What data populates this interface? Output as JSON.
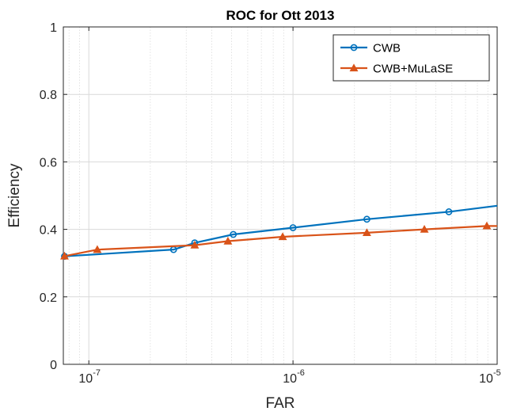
{
  "chart_data": {
    "type": "line",
    "title": "ROC for Ott 2013",
    "xlabel": "FAR",
    "ylabel": "Efficiency",
    "xscale": "log",
    "xlim": [
      7.5e-08,
      1e-05
    ],
    "ylim": [
      0,
      1
    ],
    "xticks": [
      1e-07,
      1e-06,
      1e-05
    ],
    "xtick_labels": [
      {
        "base": "10",
        "exp": "-7"
      },
      {
        "base": "10",
        "exp": "-6"
      },
      {
        "base": "10",
        "exp": "-5"
      }
    ],
    "yticks": [
      0,
      0.2,
      0.4,
      0.6,
      0.8,
      1
    ],
    "ytick_labels": [
      "0",
      "0.2",
      "0.4",
      "0.6",
      "0.8",
      "1"
    ],
    "grid": true,
    "legend_position": "top-right",
    "series": [
      {
        "name": "CWB",
        "color": "#0072BD",
        "marker": "circle",
        "x": [
          7.5e-08,
          2.6e-07,
          3.3e-07,
          5.1e-07,
          1e-06,
          2.3e-06,
          5.8e-06,
          1e-05
        ],
        "y": [
          0.32,
          0.34,
          0.36,
          0.385,
          0.405,
          0.43,
          0.452,
          0.47
        ],
        "marker_x": [
          7.6e-08,
          2.6e-07,
          3.3e-07,
          5.1e-07,
          1e-06,
          2.3e-06,
          5.8e-06
        ]
      },
      {
        "name": "CWB+MuLaSE",
        "color": "#D95319",
        "marker": "triangle",
        "x": [
          7.5e-08,
          1.1e-07,
          3.3e-07,
          4.8e-07,
          8.9e-07,
          2.3e-06,
          4.4e-06,
          8.9e-06,
          1e-05
        ],
        "y": [
          0.32,
          0.34,
          0.353,
          0.365,
          0.378,
          0.39,
          0.4,
          0.41,
          0.41
        ],
        "marker_x": [
          7.6e-08,
          1.1e-07,
          3.3e-07,
          4.8e-07,
          8.9e-07,
          2.3e-06,
          4.4e-06,
          8.9e-06
        ]
      }
    ]
  }
}
